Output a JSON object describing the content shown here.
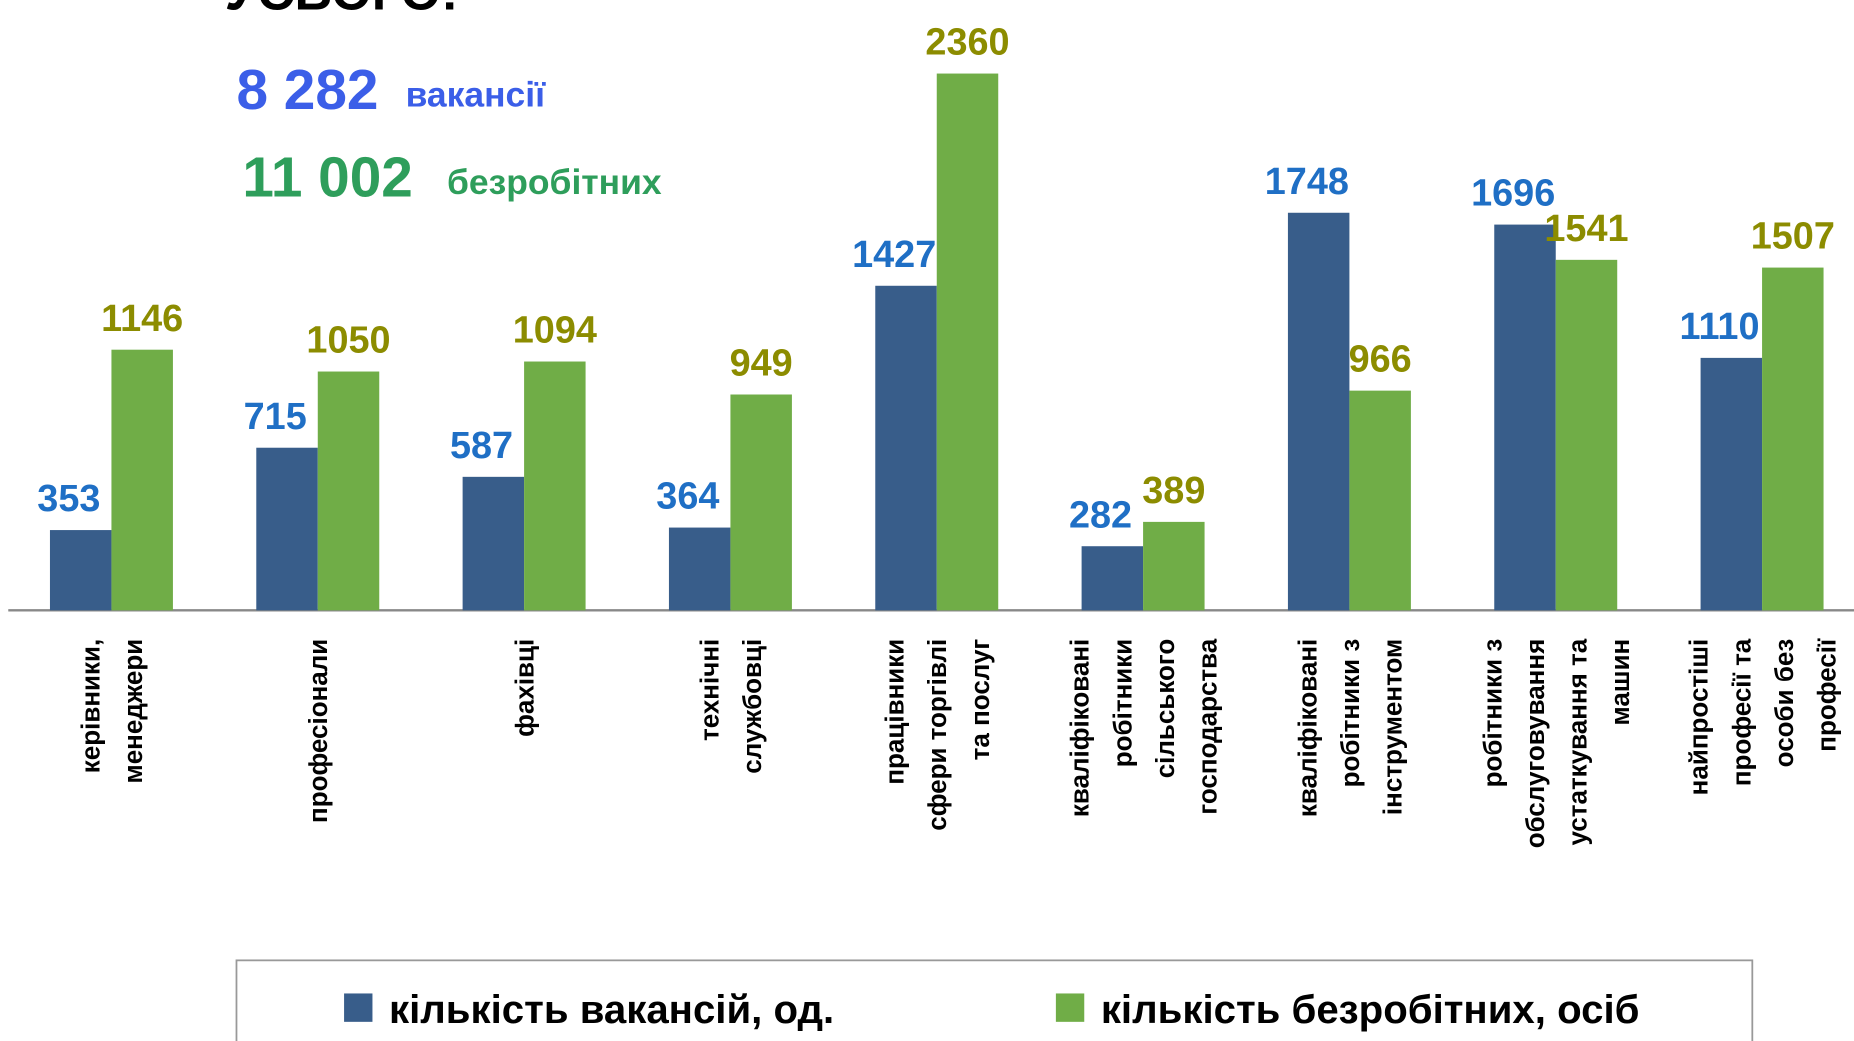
{
  "chart_data": {
    "type": "bar",
    "annotations": [
      "УСЬОГО:",
      "8 282",
      "вакансії",
      "11 002",
      "безробітних"
    ],
    "categories": [
      "керівники,\nменеджери",
      "професіонали",
      "фахівці",
      "технічні\nслужбовці",
      "працівники\nсфери торгівлі\nта послуг",
      "кваліфіковані\nробітники\nсільського\nгосподарства",
      "кваліфіковані\nробітники з\nінструментом",
      "робітники з\nобслуговування\nустаткування та\nмашин",
      "найпростіші\nпрофесії та\nособи без\nпрофесії"
    ],
    "series": [
      {
        "name": "кількість вакансій, од.",
        "color": "#385d8a",
        "label_color": "#1f6fc5",
        "values": [
          353,
          715,
          587,
          364,
          1427,
          282,
          1748,
          1696,
          1110
        ]
      },
      {
        "name": "кількість безробітних, осіб",
        "color": "#70ad47",
        "label_color": "#8c8c00",
        "values": [
          1146,
          1050,
          1094,
          949,
          2360,
          389,
          966,
          1541,
          1507
        ]
      }
    ]
  }
}
